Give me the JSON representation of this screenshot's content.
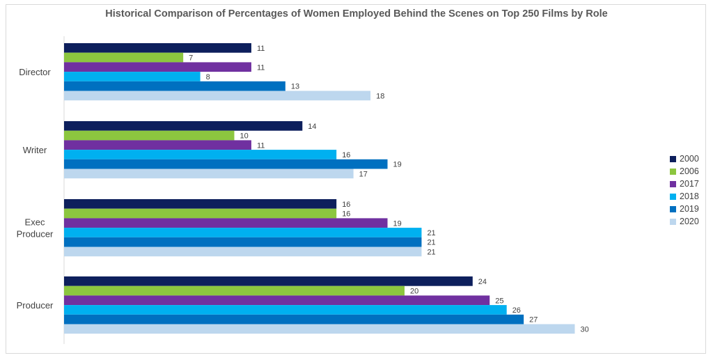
{
  "chart_data": {
    "type": "bar",
    "orientation": "horizontal",
    "title": "Historical Comparison of Percentages of Women Employed Behind the Scenes on Top 250 Films by Role",
    "categories": [
      [
        "Director"
      ],
      [
        "Writer"
      ],
      [
        "Exec",
        "Producer"
      ],
      [
        "Producer"
      ]
    ],
    "series": [
      {
        "name": "2000",
        "color": "#0d1f5c",
        "values": [
          11,
          14,
          16,
          24
        ]
      },
      {
        "name": "2006",
        "color": "#8cc63f",
        "values": [
          7,
          10,
          16,
          20
        ]
      },
      {
        "name": "2017",
        "color": "#7030a0",
        "values": [
          11,
          11,
          19,
          25
        ]
      },
      {
        "name": "2018",
        "color": "#00b0f0",
        "values": [
          8,
          16,
          21,
          26
        ]
      },
      {
        "name": "2019",
        "color": "#0070c0",
        "values": [
          13,
          19,
          21,
          27
        ]
      },
      {
        "name": "2020",
        "color": "#bdd7ee",
        "values": [
          18,
          17,
          21,
          30
        ]
      }
    ],
    "xlim": [
      0,
      36
    ],
    "legend_position": "right",
    "grid": false,
    "data_labels": true
  }
}
